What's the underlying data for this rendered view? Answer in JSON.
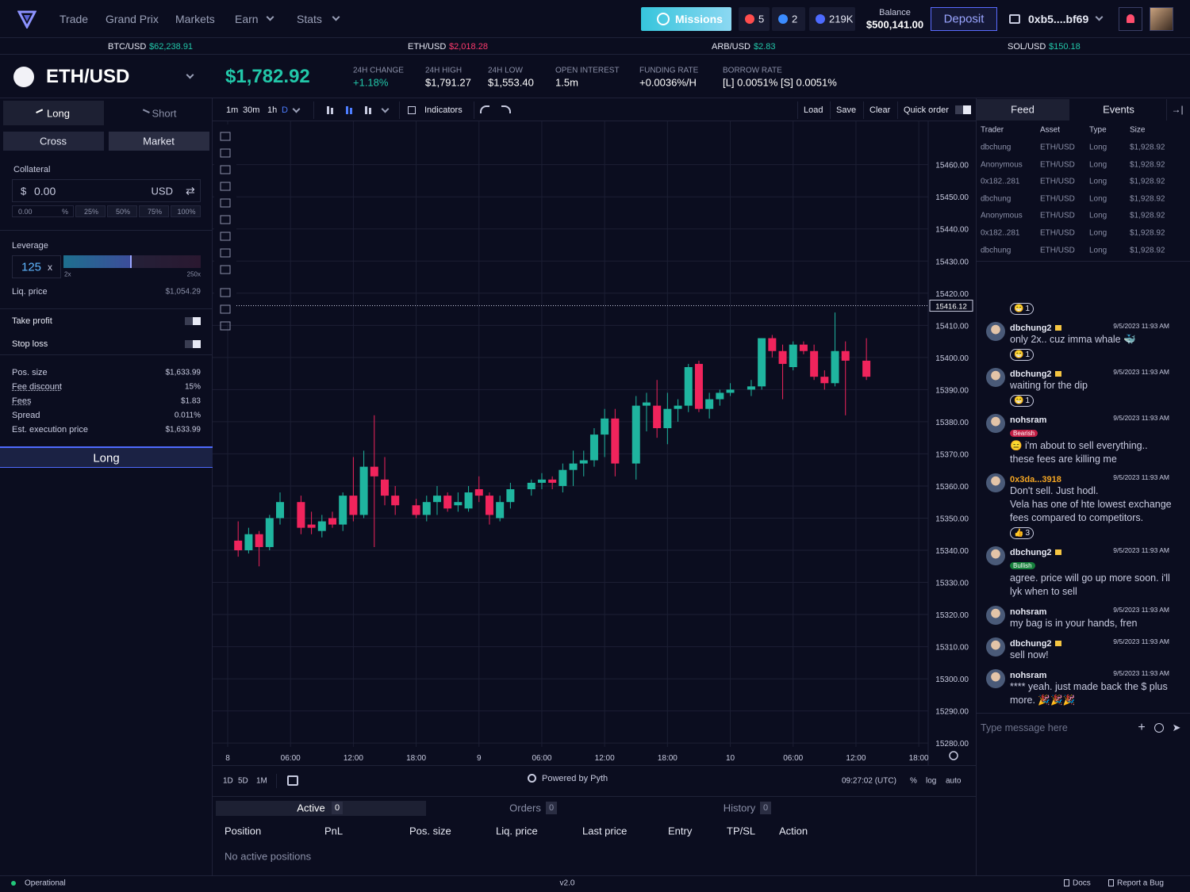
{
  "nav": {
    "items": [
      "Trade",
      "Grand Prix",
      "Markets",
      "Earn",
      "Stats"
    ],
    "missions": "Missions",
    "counters": [
      "5",
      "2",
      "219K"
    ],
    "balance_label": "Balance",
    "balance": "$500,141.00",
    "deposit": "Deposit",
    "wallet": "0xb5....bf69"
  },
  "tickers": [
    {
      "pair": "BTC/USD",
      "price": "$62,238.91",
      "color": "#22c7a9"
    },
    {
      "pair": "ETH/USD",
      "price": "$2,018.28",
      "color": "#ff3a6e"
    },
    {
      "pair": "ARB/USD",
      "price": "$2.83",
      "color": "#22c7a9"
    },
    {
      "pair": "SOL/USD",
      "price": "$150.18",
      "color": "#22c7a9"
    }
  ],
  "market": {
    "pair": "ETH/USD",
    "price": "$1,782.92",
    "stats": [
      {
        "label": "24H CHANGE",
        "value": "+1.18%",
        "color": "#22c7a9"
      },
      {
        "label": "24H HIGH",
        "value": "$1,791.27"
      },
      {
        "label": "24H LOW",
        "value": "$1,553.40"
      },
      {
        "label": "OPEN INTEREST",
        "value": "1.5m"
      },
      {
        "label": "FUNDING RATE",
        "value": "+0.0036%/H"
      },
      {
        "label": "BORROW RATE",
        "value": "[L] 0.0051% [S] 0.0051%"
      }
    ]
  },
  "order": {
    "sides": [
      "Long",
      "Short"
    ],
    "types": [
      "Cross",
      "Market"
    ],
    "collateral_label": "Collateral",
    "currency_symbol": "$",
    "amount": "0.00",
    "unit": "USD",
    "percent_input": "0.00",
    "percent_sign": "%",
    "presets": [
      "25%",
      "50%",
      "75%",
      "100%"
    ],
    "leverage_label": "Leverage",
    "leverage": {
      "value": 125,
      "suffix": "x",
      "min": {
        "value": 2,
        "label": "2x"
      },
      "max": {
        "value": 250,
        "label": "250x"
      }
    },
    "liq_label": "Liq. price",
    "liq": "$1,054.29",
    "toggles": [
      "Take profit",
      "Stop loss"
    ],
    "summary": [
      {
        "label": "Pos. size",
        "value": "$1,633.99"
      },
      {
        "label": "Fee discount",
        "value": "15%",
        "underline": true
      },
      {
        "label": "Fees",
        "value": "$1.83",
        "underline": true
      },
      {
        "label": "Spread",
        "value": "0.011%"
      },
      {
        "label": "Est. execution price",
        "value": "$1,633.99"
      }
    ],
    "submit": "Long"
  },
  "toolbar": {
    "intervals": [
      "1m",
      "30m",
      "1h",
      "D"
    ],
    "indicators": "Indicators",
    "actions": [
      "Load",
      "Save",
      "Clear"
    ],
    "quick_order": "Quick order"
  },
  "price_chart": {
    "type": "candlestick",
    "up_color": "#1fb59f",
    "down_color": "#f0245c",
    "grid": true,
    "x": [
      1,
      2,
      3,
      4,
      5,
      7,
      8,
      9,
      10,
      11,
      12,
      13,
      14,
      15,
      16,
      18,
      19,
      20,
      21,
      22,
      23,
      24,
      25,
      26,
      27,
      29,
      30,
      31,
      32,
      33,
      34,
      35,
      36,
      37,
      39,
      40,
      41,
      42,
      43,
      44,
      45,
      46,
      47,
      48,
      50,
      51,
      52,
      53,
      54,
      55,
      56,
      57,
      58,
      59,
      61
    ],
    "open": [
      15343,
      15340,
      15345,
      15341,
      15350,
      15355,
      15348,
      15346,
      15350,
      15348,
      15357,
      15351,
      15366,
      15362,
      15357,
      15354,
      15351,
      15355,
      15357,
      15354,
      15353,
      15359,
      15357,
      15350,
      15355,
      15359,
      15361,
      15362,
      15360,
      15365,
      15367,
      15368,
      15376,
      15381,
      15367,
      15385,
      15385,
      15378,
      15384,
      15385,
      15398,
      15384,
      15387,
      15389,
      15390,
      15391,
      15406,
      15402,
      15397,
      15404,
      15402,
      15394,
      15392,
      15402,
      15399
    ],
    "high": [
      15349,
      15347,
      15346,
      15351,
      15358,
      15357,
      15352,
      15351,
      15352,
      15358,
      15369,
      15371,
      15382,
      15369,
      15360,
      15356,
      15357,
      15360,
      15358,
      15358,
      15360,
      15363,
      15358,
      15357,
      15361,
      15362,
      15364,
      15363,
      15367,
      15371,
      15371,
      15378,
      15384,
      15384,
      15388,
      15389,
      15393,
      15389,
      15387,
      15398,
      15399,
      15389,
      15390,
      15392,
      15393,
      15406,
      15407,
      15404,
      15405,
      15405,
      15404,
      15396,
      15414,
      15405,
      15406
    ],
    "low": [
      15338,
      15339,
      15335,
      15340,
      15348,
      15345,
      15345,
      15344,
      15347,
      15346,
      15349,
      15350,
      15341,
      15354,
      15351,
      15350,
      15349,
      15351,
      15352,
      15352,
      15352,
      15355,
      15348,
      15349,
      15353,
      15357,
      15359,
      15359,
      15358,
      15360,
      15363,
      15366,
      15369,
      15363,
      15362,
      15377,
      15375,
      15373,
      15380,
      15383,
      15383,
      15381,
      15385,
      15388,
      15388,
      15390,
      15400,
      15387,
      15396,
      15401,
      15393,
      15390,
      15391,
      15382,
      15393
    ],
    "close": [
      15340,
      15345,
      15341,
      15350,
      15355,
      15347,
      15347,
      15349,
      15348,
      15357,
      15351,
      15366,
      15363,
      15357,
      15354,
      15351,
      15355,
      15357,
      15353,
      15355,
      15358,
      15357,
      15351,
      15355,
      15359,
      15361,
      15362,
      15361,
      15365,
      15367,
      15368,
      15376,
      15381,
      15367,
      15385,
      15386,
      15378,
      15384,
      15385,
      15397,
      15384,
      15387,
      15389,
      15390,
      15391,
      15406,
      15402,
      15398,
      15404,
      15402,
      15394,
      15392,
      15402,
      15399,
      15394
    ],
    "last_price": 15416.12,
    "xlim": [
      -1.44,
      66.9
    ],
    "ylim": [
      15279.3,
      15473
    ],
    "xticks": [
      {
        "value": 0,
        "label": "8"
      },
      {
        "value": 6,
        "label": "06:00"
      },
      {
        "value": 12,
        "label": "12:00"
      },
      {
        "value": 18,
        "label": "18:00"
      },
      {
        "value": 24,
        "label": "9"
      },
      {
        "value": 30,
        "label": "06:00"
      },
      {
        "value": 36,
        "label": "12:00"
      },
      {
        "value": 42,
        "label": "18:00"
      },
      {
        "value": 48,
        "label": "10"
      },
      {
        "value": 54,
        "label": "06:00"
      },
      {
        "value": 60,
        "label": "12:00"
      },
      {
        "value": 66,
        "label": "18:00"
      }
    ],
    "yticks": [
      {
        "value": 15280,
        "label": "15280.00"
      },
      {
        "value": 15290,
        "label": "15290.00"
      },
      {
        "value": 15300,
        "label": "15300.00"
      },
      {
        "value": 15310,
        "label": "15310.00"
      },
      {
        "value": 15320,
        "label": "15320.00"
      },
      {
        "value": 15330,
        "label": "15330.00"
      },
      {
        "value": 15340,
        "label": "15340.00"
      },
      {
        "value": 15350,
        "label": "15350.00"
      },
      {
        "value": 15360,
        "label": "15360.00"
      },
      {
        "value": 15370,
        "label": "15370.00"
      },
      {
        "value": 15380,
        "label": "15380.00"
      },
      {
        "value": 15390,
        "label": "15390.00"
      },
      {
        "value": 15400,
        "label": "15400.00"
      },
      {
        "value": 15410,
        "label": "15410.00"
      },
      {
        "value": 15420,
        "label": "15420.00"
      },
      {
        "value": 15430,
        "label": "15430.00"
      },
      {
        "value": 15440,
        "label": "15440.00"
      },
      {
        "value": 15450,
        "label": "15450.00"
      },
      {
        "value": 15460,
        "label": "15460.00"
      }
    ]
  },
  "chart_footer": {
    "ranges": [
      "1D",
      "5D",
      "1M"
    ],
    "powered": "Powered by Pyth",
    "clock": "09:27:02 (UTC)",
    "options": [
      "%",
      "log",
      "auto"
    ]
  },
  "positions": {
    "tabs": [
      {
        "label": "Active",
        "count": "0"
      },
      {
        "label": "Orders",
        "count": "0"
      },
      {
        "label": "History",
        "count": "0"
      }
    ],
    "columns": [
      "Position",
      "PnL",
      "Pos. size",
      "Liq. price",
      "Last price",
      "Entry",
      "TP/SL",
      "Action"
    ],
    "empty": "No active positions"
  },
  "feed": {
    "tabs": [
      "Feed",
      "Events"
    ],
    "columns": [
      "Trader",
      "Asset",
      "Type",
      "Size"
    ],
    "rows": [
      [
        "dbchung",
        "ETH/USD",
        "Long",
        "$1,928.92"
      ],
      [
        "Anonymous",
        "ETH/USD",
        "Long",
        "$1,928.92"
      ],
      [
        "0x182..281",
        "ETH/USD",
        "Long",
        "$1,928.92"
      ],
      [
        "dbchung",
        "ETH/USD",
        "Long",
        "$1,928.92"
      ],
      [
        "Anonymous",
        "ETH/USD",
        "Long",
        "$1,928.92"
      ],
      [
        "0x182..281",
        "ETH/USD",
        "Long",
        "$1,928.92"
      ],
      [
        "dbchung",
        "ETH/USD",
        "Long",
        "$1,928.92"
      ]
    ],
    "messages": [
      {
        "reaction": {
          "emoji": "😁",
          "count": "1"
        }
      },
      {
        "user": "dbchung2",
        "verified": true,
        "time": "9/5/2023 11:93 AM",
        "text": "only 2x.. cuz imma whale 🐳",
        "reaction": {
          "emoji": "😁",
          "count": "1"
        }
      },
      {
        "user": "dbchung2",
        "verified": true,
        "time": "9/5/2023 11:93 AM",
        "text": "waiting for the dip",
        "reaction": {
          "emoji": "😁",
          "count": "1"
        }
      },
      {
        "user": "nohsram",
        "time": "9/5/2023 11:93 AM",
        "badge": "Bearish",
        "badge_color": "#c21f45",
        "text": "😑 i'm about to sell everything.. these fees are killing me"
      },
      {
        "user": "0x3da...3918",
        "user_color": "#f5a623",
        "time": "9/5/2023 11:93 AM",
        "text": "Don't sell. Just hodl.\nVela has one of hte lowest exchange fees compared to competitors.",
        "reaction": {
          "emoji": "👍",
          "count": "3"
        }
      },
      {
        "user": "dbchung2",
        "verified": true,
        "time": "9/5/2023 11:93 AM",
        "badge": "Bullish",
        "badge_color": "#16803c",
        "text": "agree. price will go up more soon. i'll lyk when to sell"
      },
      {
        "user": "nohsram",
        "time": "9/5/2023 11:93 AM",
        "text": "my bag is in your hands, fren"
      },
      {
        "user": "dbchung2",
        "verified": true,
        "time": "9/5/2023 11:93 AM",
        "text": "sell now!"
      },
      {
        "user": "nohsram",
        "time": "9/5/2023 11:93 AM",
        "text": "**** yeah. just made back the $ plus more. 🎉🎉🎉"
      }
    ],
    "input": "Type message here"
  },
  "status": {
    "state": "Operational",
    "version": "v2.0",
    "links": [
      "Docs",
      "Report a Bug"
    ]
  }
}
